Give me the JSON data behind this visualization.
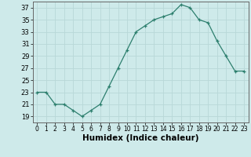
{
  "x": [
    0,
    1,
    2,
    3,
    4,
    5,
    6,
    7,
    8,
    9,
    10,
    11,
    12,
    13,
    14,
    15,
    16,
    17,
    18,
    19,
    20,
    21,
    22,
    23
  ],
  "y": [
    23,
    23,
    21,
    21,
    20,
    19,
    20,
    21,
    24,
    27,
    30,
    33,
    34,
    35,
    35.5,
    36,
    37.5,
    37,
    35,
    34.5,
    31.5,
    29,
    26.5,
    26.5
  ],
  "xlabel": "Humidex (Indice chaleur)",
  "ylim": [
    18,
    38
  ],
  "xlim": [
    -0.5,
    23.5
  ],
  "yticks": [
    19,
    21,
    23,
    25,
    27,
    29,
    31,
    33,
    35,
    37
  ],
  "xticks": [
    0,
    1,
    2,
    3,
    4,
    5,
    6,
    7,
    8,
    9,
    10,
    11,
    12,
    13,
    14,
    15,
    16,
    17,
    18,
    19,
    20,
    21,
    22,
    23
  ],
  "line_color": "#2d7f6e",
  "bg_color": "#ceeaea",
  "grid_color": "#b8d8d8"
}
